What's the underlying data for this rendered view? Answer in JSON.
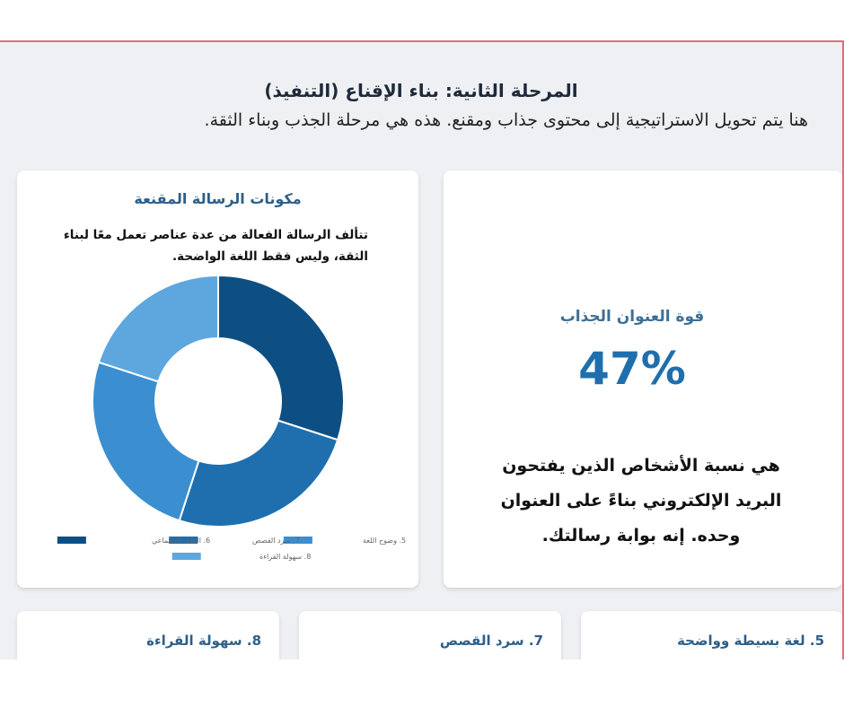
{
  "header": {
    "title": "المرحلة الثانية: بناء الإقناع (التنفيذ)",
    "subtitle": "هنا يتم تحويل الاستراتيجية إلى محتوى جذاب ومقنع. هذه هي مرحلة الجذب وبناء الثقة."
  },
  "chart_card": {
    "title": "مكونات الرسالة المقنعة",
    "description": "تتألف الرسالة الفعالة من عدة عناصر تعمل معًا لبناء الثقة، وليس فقط اللغة الواضحة."
  },
  "chart_data": {
    "type": "pie",
    "donut": true,
    "title": "",
    "legend_position": "bottom",
    "categories": [
      "6. الدليل الاجتماعي",
      "7. سرد القصص",
      "5. وضوح اللغة",
      "8. سهولة القراءة"
    ],
    "values": [
      30,
      25,
      25,
      20
    ],
    "colors": [
      "#0d4f82",
      "#1f6fae",
      "#3b8fd0",
      "#5ea6de"
    ],
    "legend_order": [
      2,
      1,
      0,
      3
    ]
  },
  "stat_card": {
    "label": "قوة العنوان الجذاب",
    "value": "47%",
    "description": "هي نسبة الأشخاص الذين يفتحون البريد الإلكتروني بناءً على العنوان وحده. إنه بوابة رسالتك."
  },
  "bottom_cards": [
    {
      "label": "5. لغة بسيطة وواضحة"
    },
    {
      "label": "7. سرد القصص"
    },
    {
      "label": "8. سهولة القراءة"
    }
  ]
}
